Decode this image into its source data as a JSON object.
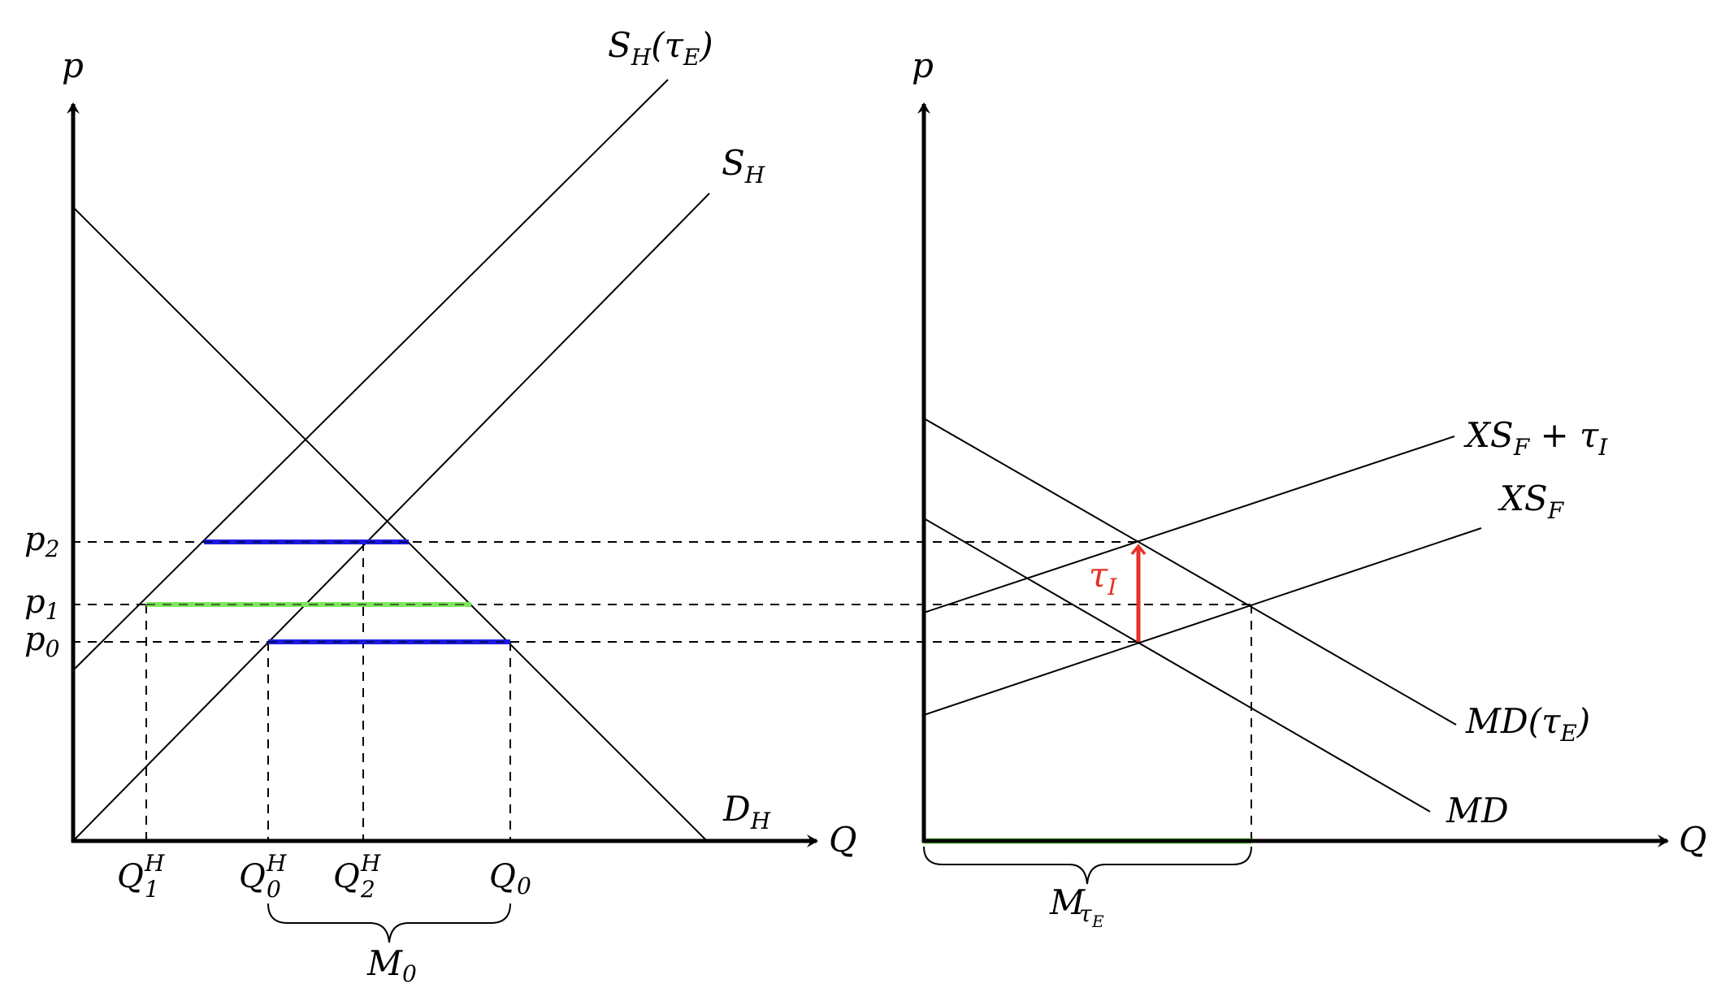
{
  "left_panel": {
    "y_axis_label": "p",
    "x_axis_label": "Q",
    "curves": {
      "supply_tax": {
        "name": "S",
        "sub": "H",
        "arg": "τ",
        "arg_sub": "E"
      },
      "supply": {
        "name": "S",
        "sub": "H"
      },
      "demand": {
        "name": "D",
        "sub": "H"
      }
    },
    "price_ticks": [
      {
        "name": "p",
        "sub": "2"
      },
      {
        "name": "p",
        "sub": "1"
      },
      {
        "name": "p",
        "sub": "0"
      }
    ],
    "quantity_ticks": [
      {
        "name": "Q",
        "sub": "1",
        "sup": "H"
      },
      {
        "name": "Q",
        "sub": "0",
        "sup": "H"
      },
      {
        "name": "Q",
        "sub": "2",
        "sup": "H"
      },
      {
        "name": "Q",
        "sub": "0",
        "sup": ""
      }
    ],
    "brace_label": {
      "name": "M",
      "sub": "0"
    }
  },
  "right_panel": {
    "y_axis_label": "p",
    "x_axis_label": "Q",
    "curves": {
      "xs_tax": {
        "name": "XS",
        "sub": "F",
        "extra": " + τ",
        "extra_sub": "I"
      },
      "xs": {
        "name": "XS",
        "sub": "F"
      },
      "md_tax": {
        "name": "MD(τ",
        "sub": "E",
        "close": ")"
      },
      "md": {
        "name": "MD"
      }
    },
    "tax_label": {
      "name": "τ",
      "sub": "I"
    },
    "brace_label": {
      "name": "M",
      "sub": "τ",
      "subsub": "E"
    }
  },
  "colors": {
    "blue_segment": "#1a1ae6",
    "green_segment": "#7ee65a",
    "tax_arrow": "#e53224",
    "lines": "#000000"
  }
}
